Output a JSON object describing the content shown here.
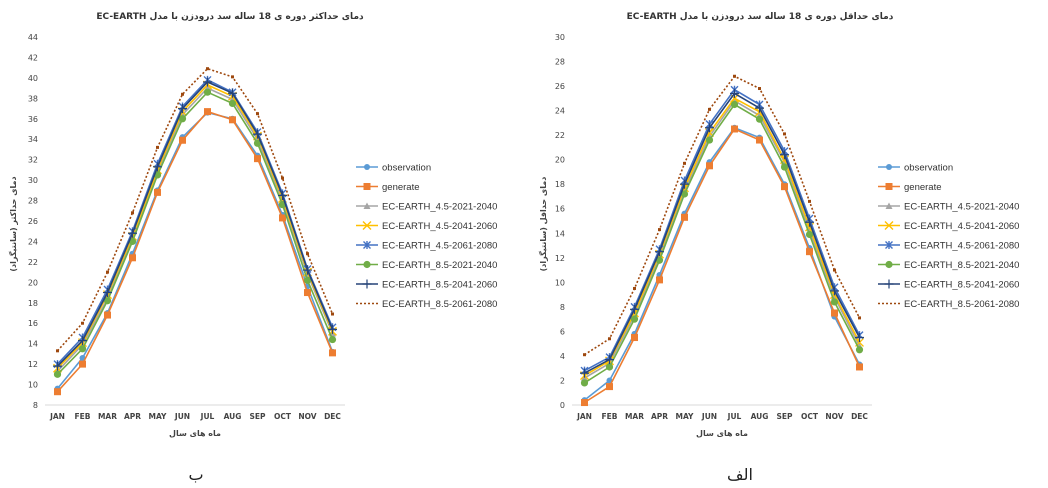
{
  "chart_data": [
    {
      "type": "line",
      "title": "دمای حداکثر دوره ی 18 ساله سد درودزن با مدل   EC-EARTH",
      "xlabel": "ماه های سال",
      "ylabel": "دمای حداکثر (سانتیگراد)",
      "categories": [
        "JAN",
        "FEB",
        "MAR",
        "APR",
        "MAY",
        "JUN",
        "JUL",
        "AUG",
        "SEP",
        "OCT",
        "NOV",
        "DEC"
      ],
      "ylim": [
        8,
        44
      ],
      "yticks": [
        8,
        10,
        12,
        14,
        16,
        18,
        20,
        22,
        24,
        26,
        28,
        30,
        32,
        34,
        36,
        38,
        40,
        42,
        44
      ],
      "grid": false,
      "legend": "right",
      "caption": "ب",
      "series": [
        {
          "name": "observation",
          "color": "#5b9bd5",
          "values": [
            9.6,
            12.6,
            17.0,
            22.8,
            29.0,
            34.2,
            36.6,
            36.0,
            32.4,
            26.6,
            19.6,
            13.2
          ]
        },
        {
          "name": "generate",
          "color": "#ed7d31",
          "values": [
            9.3,
            12.0,
            16.8,
            22.4,
            28.8,
            33.9,
            36.7,
            35.9,
            32.1,
            26.3,
            19.0,
            13.1
          ]
        },
        {
          "name": "EC-EARTH_4.5-2021-2040",
          "color": "#a5a5a5",
          "values": [
            11.3,
            13.9,
            18.4,
            24.2,
            30.8,
            36.4,
            39.0,
            37.9,
            34.0,
            28.0,
            20.8,
            15.0
          ]
        },
        {
          "name": "EC-EARTH_4.5-2041-2060",
          "color": "#ffc000",
          "values": [
            11.6,
            14.1,
            18.8,
            24.5,
            31.0,
            36.7,
            39.3,
            38.2,
            34.3,
            28.2,
            21.0,
            15.2
          ]
        },
        {
          "name": "EC-EARTH_4.5-2061-2080",
          "color": "#4472c4",
          "values": [
            12.0,
            14.6,
            19.3,
            25.0,
            31.6,
            37.2,
            39.8,
            38.6,
            34.7,
            28.7,
            21.3,
            15.6
          ]
        },
        {
          "name": "EC-EARTH_8.5-2021-2040",
          "color": "#70ad47",
          "values": [
            11.0,
            13.5,
            18.2,
            24.0,
            30.5,
            36.0,
            38.6,
            37.5,
            33.6,
            27.6,
            20.2,
            14.4
          ]
        },
        {
          "name": "EC-EARTH_8.5-2041-2060",
          "color": "#264478",
          "values": [
            11.8,
            14.3,
            19.0,
            24.8,
            31.3,
            37.0,
            39.6,
            38.5,
            34.5,
            28.5,
            21.2,
            15.4
          ]
        },
        {
          "name": "EC-EARTH_8.5-2061-2080",
          "color": "#9e480e",
          "values": [
            13.3,
            16.0,
            21.0,
            26.8,
            33.2,
            38.4,
            40.9,
            40.1,
            36.5,
            30.2,
            22.8,
            16.9
          ]
        }
      ]
    },
    {
      "type": "line",
      "title": "دمای حداقل دوره ی 18 ساله سد درودزن با مدل   EC-EARTH",
      "xlabel": "ماه های سال",
      "ylabel": "دمای حداقل (سانتیگراد)",
      "categories": [
        "JAN",
        "FEB",
        "MAR",
        "APR",
        "MAY",
        "JUN",
        "JUL",
        "AUG",
        "SEP",
        "OCT",
        "NOV",
        "DEC"
      ],
      "ylim": [
        0,
        30
      ],
      "yticks": [
        0,
        2,
        4,
        6,
        8,
        10,
        12,
        14,
        16,
        18,
        20,
        22,
        24,
        26,
        28,
        30
      ],
      "grid": false,
      "legend": "right",
      "caption": "الف",
      "series": [
        {
          "name": "observation",
          "color": "#5b9bd5",
          "values": [
            0.4,
            2.0,
            5.8,
            10.6,
            15.6,
            19.8,
            22.6,
            21.8,
            18.0,
            12.8,
            7.2,
            3.3
          ]
        },
        {
          "name": "generate",
          "color": "#ed7d31",
          "values": [
            0.2,
            1.5,
            5.5,
            10.2,
            15.3,
            19.5,
            22.5,
            21.6,
            17.8,
            12.5,
            7.5,
            3.1
          ]
        },
        {
          "name": "EC-EARTH_4.5-2021-2040",
          "color": "#a5a5a5",
          "values": [
            2.2,
            3.4,
            7.3,
            12.0,
            17.4,
            21.9,
            24.8,
            23.6,
            19.8,
            14.2,
            8.8,
            4.8
          ]
        },
        {
          "name": "EC-EARTH_4.5-2041-2060",
          "color": "#ffc000",
          "values": [
            2.4,
            3.6,
            7.5,
            12.3,
            17.7,
            22.2,
            25.0,
            23.9,
            20.0,
            14.5,
            9.0,
            5.1
          ]
        },
        {
          "name": "EC-EARTH_4.5-2061-2080",
          "color": "#4472c4",
          "values": [
            2.8,
            3.9,
            8.0,
            12.7,
            18.3,
            22.9,
            25.7,
            24.5,
            20.7,
            15.2,
            9.6,
            5.7
          ]
        },
        {
          "name": "EC-EARTH_8.5-2021-2040",
          "color": "#70ad47",
          "values": [
            1.8,
            3.1,
            7.0,
            11.8,
            17.2,
            21.6,
            24.5,
            23.3,
            19.4,
            13.9,
            8.4,
            4.5
          ]
        },
        {
          "name": "EC-EARTH_8.5-2041-2060",
          "color": "#264478",
          "values": [
            2.6,
            3.7,
            7.8,
            12.5,
            18.0,
            22.6,
            25.4,
            24.2,
            20.4,
            14.9,
            9.3,
            5.5
          ]
        },
        {
          "name": "EC-EARTH_8.5-2061-2080",
          "color": "#9e480e",
          "values": [
            4.1,
            5.4,
            9.5,
            14.3,
            19.7,
            24.1,
            26.8,
            25.8,
            22.1,
            16.6,
            11.0,
            7.1
          ]
        }
      ]
    }
  ]
}
